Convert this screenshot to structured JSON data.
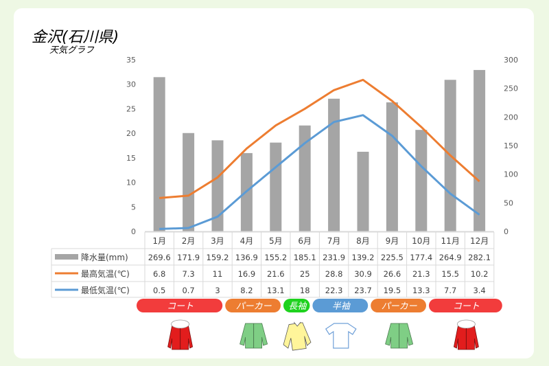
{
  "title": "金沢(石川県)",
  "subtitle": "天気グラフ",
  "chart_data": {
    "type": "bar+line",
    "categories": [
      "1月",
      "2月",
      "3月",
      "4月",
      "5月",
      "6月",
      "7月",
      "8月",
      "9月",
      "10月",
      "11月",
      "12月"
    ],
    "left_axis": {
      "ylim": [
        0,
        35
      ],
      "ticks": [
        0,
        5,
        10,
        15,
        20,
        25,
        30,
        35
      ]
    },
    "right_axis": {
      "ylim": [
        0,
        300
      ],
      "ticks": [
        0,
        50,
        100,
        150,
        200,
        250,
        300
      ]
    },
    "series": [
      {
        "name": "降水量(mm)",
        "type": "bar",
        "axis": "right",
        "color": "#a5a5a5",
        "values": [
          269.6,
          171.9,
          159.2,
          136.9,
          155.2,
          185.1,
          231.9,
          139.2,
          225.5,
          177.4,
          264.9,
          282.1
        ]
      },
      {
        "name": "最高気温(℃)",
        "type": "line",
        "axis": "left",
        "color": "#ed7d31",
        "values": [
          6.8,
          7.3,
          11,
          16.9,
          21.6,
          25,
          28.8,
          30.9,
          26.6,
          21.3,
          15.5,
          10.2
        ]
      },
      {
        "name": "最低気温(℃)",
        "type": "line",
        "axis": "left",
        "color": "#5b9bd5",
        "values": [
          0.5,
          0.7,
          3,
          8.2,
          13.1,
          18,
          22.3,
          23.7,
          19.5,
          13.3,
          7.7,
          3.4
        ]
      }
    ],
    "grid": false,
    "legend": "data-table"
  },
  "clothing": [
    {
      "label": "コート",
      "from": 1,
      "to": 3,
      "color": "#f23c3c",
      "icon": "coat-icon"
    },
    {
      "label": "パーカー",
      "from": 4,
      "to": 5,
      "color": "#ed7d31",
      "icon": "parka-icon"
    },
    {
      "label": "長袖",
      "from": 6,
      "to": 6,
      "color": "#1ed21e",
      "icon": "long-sleeve-shirt-icon"
    },
    {
      "label": "半袖",
      "from": 7,
      "to": 8,
      "color": "#5b9bd5",
      "icon": "t-shirt-icon"
    },
    {
      "label": "パーカー",
      "from": 9,
      "to": 10,
      "color": "#ed7d31",
      "icon": "parka-icon"
    },
    {
      "label": "コート",
      "from": 11,
      "to": 12,
      "color": "#f23c3c",
      "icon": "coat-icon"
    }
  ]
}
